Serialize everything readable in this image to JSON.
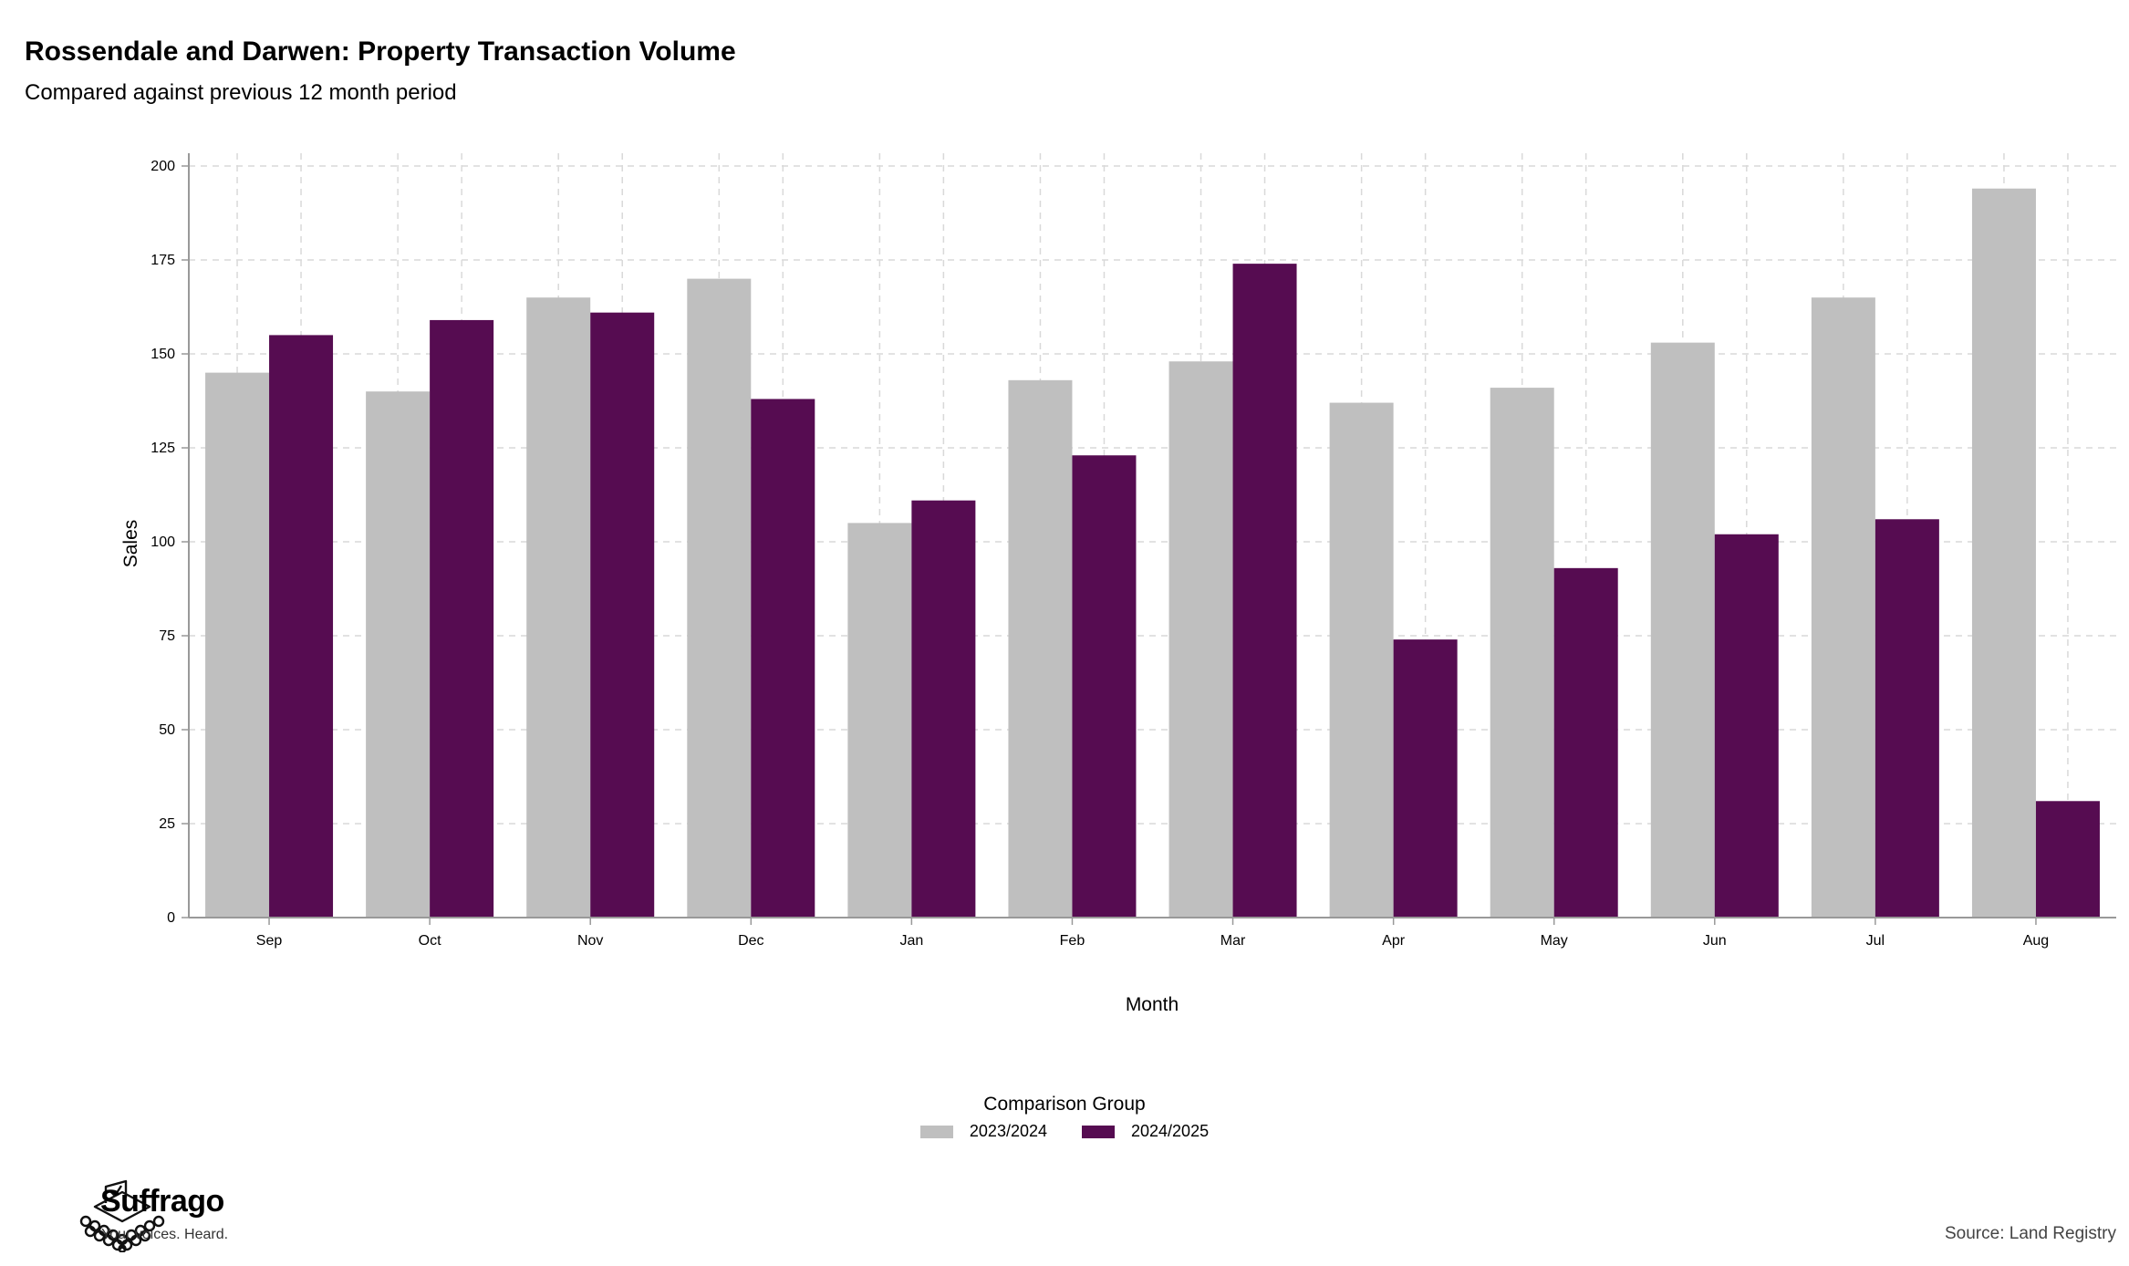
{
  "header": {
    "title": "Rossendale and Darwen: Property Transaction Volume",
    "subtitle": "Compared against previous 12 month period"
  },
  "colors": {
    "series_2023": "#bfbfbf",
    "series_2024": "#560c51",
    "grid": "#d9d9d9",
    "axis": "#999999"
  },
  "chart_data": {
    "type": "bar",
    "categories": [
      "Sep",
      "Oct",
      "Nov",
      "Dec",
      "Jan",
      "Feb",
      "Mar",
      "Apr",
      "May",
      "Jun",
      "Jul",
      "Aug"
    ],
    "series": [
      {
        "name": "2023/2024",
        "values": [
          145,
          140,
          165,
          170,
          105,
          143,
          148,
          137,
          141,
          153,
          165,
          194
        ]
      },
      {
        "name": "2024/2025",
        "values": [
          155,
          159,
          161,
          138,
          111,
          123,
          174,
          74,
          93,
          102,
          106,
          31
        ]
      }
    ],
    "xlabel": "Month",
    "ylabel": "Sales",
    "ylim": [
      0,
      200
    ],
    "yticks": [
      0,
      25,
      50,
      75,
      100,
      125,
      150,
      175,
      200
    ],
    "grid": true,
    "legend": {
      "title": "Comparison Group",
      "position": "bottom"
    }
  },
  "footer": {
    "brand": "Suffrago",
    "tagline": "Your voices. Heard.",
    "source": "Source: Land Registry",
    "logo_icon": "ballot-box-icon"
  }
}
